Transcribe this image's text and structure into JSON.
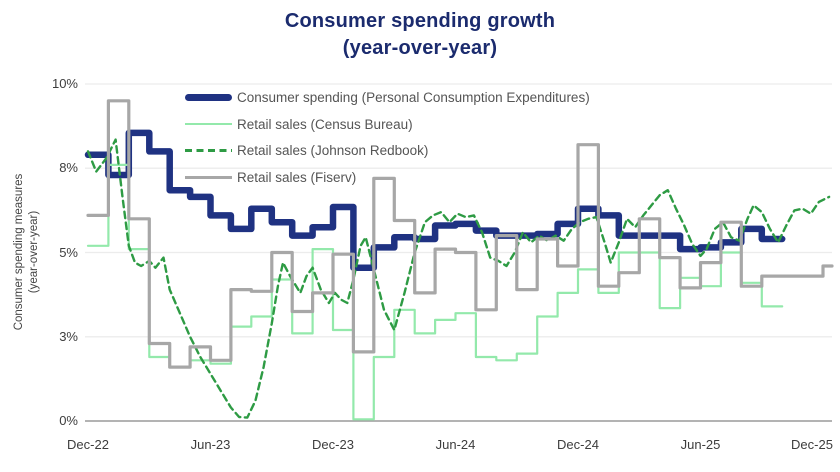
{
  "title": {
    "line1": "Consumer spending growth",
    "line2": "(year-over-year)"
  },
  "y_axis": {
    "title_line1": "Consumer spending measures",
    "title_line2": "(year-over-year)",
    "ticks": [
      {
        "label": "10%",
        "value": 10
      },
      {
        "label": "8%",
        "value": 7.5
      },
      {
        "label": "5%",
        "value": 5
      },
      {
        "label": "3%",
        "value": 2.5
      },
      {
        "label": "0%",
        "value": 0
      }
    ]
  },
  "x_axis": {
    "ticks": [
      {
        "label": "Dec-22",
        "month": 0
      },
      {
        "label": "Jun-23",
        "month": 6
      },
      {
        "label": "Dec-23",
        "month": 12
      },
      {
        "label": "Jun-24",
        "month": 18
      },
      {
        "label": "Dec-24",
        "month": 24
      },
      {
        "label": "Jun-25",
        "month": 30
      },
      {
        "label": "Dec-25",
        "month": 36
      }
    ]
  },
  "legend": [
    {
      "label": "Consumer spending (Personal Consumption Expenditures)",
      "swatch": "thick",
      "color": "#1f3282"
    },
    {
      "label": "Retail sales (Census Bureau)",
      "swatch": "thin",
      "color": "#93e9ab"
    },
    {
      "label": "Retail sales (Johnson Redbook)",
      "swatch": "dashed",
      "color": "#2e9b44"
    },
    {
      "label": "Retail sales (Fiserv)",
      "swatch": "medium",
      "color": "#a7a7a7"
    }
  ],
  "colors": {
    "title": "#1b2b6e",
    "pce": "#1f3282",
    "census": "#93e9ab",
    "redbook": "#2e9b44",
    "fiserv": "#a7a7a7",
    "grid": "#ececec",
    "axis_line": "#9a9a9a",
    "tick_text": "#3d3d3d",
    "legend_text": "#555555",
    "background": "#ffffff"
  },
  "chart_data": {
    "type": "line",
    "title": "Consumer spending growth (year-over-year)",
    "ylabel": "Consumer spending measures (year-over-year)",
    "ylim": [
      0,
      10
    ],
    "x_unit": "months since Dec-2022",
    "xlim_months": [
      0,
      36.5
    ],
    "grid": "horizontal-only",
    "legend_position": "top-left-inside",
    "series": [
      {
        "name": "Consumer spending (Personal Consumption Expenditures)",
        "key": "pce",
        "render": "step",
        "color": "#1f3282",
        "width": 6.5,
        "dash": null,
        "start_month": 0,
        "values": [
          7.9,
          7.3,
          8.55,
          8.0,
          6.85,
          6.65,
          6.1,
          5.7,
          6.3,
          5.9,
          5.5,
          5.75,
          6.35,
          4.55,
          5.15,
          5.45,
          5.4,
          5.8,
          5.85,
          5.65,
          5.5,
          5.5,
          5.55,
          5.85,
          6.3,
          6.1,
          5.5,
          5.5,
          5.5,
          5.1,
          5.15,
          5.3,
          5.7,
          5.4
        ]
      },
      {
        "name": "Retail sales (Census Bureau)",
        "key": "census",
        "render": "step",
        "color": "#93e9ab",
        "width": 2.2,
        "dash": null,
        "start_month": 0,
        "values": [
          5.2,
          7.6,
          5.1,
          1.9,
          1.6,
          1.8,
          1.7,
          2.8,
          3.1,
          4.2,
          2.6,
          5.1,
          2.7,
          0.05,
          1.9,
          3.3,
          2.6,
          3.0,
          3.2,
          1.9,
          1.8,
          2.0,
          3.1,
          3.8,
          4.5,
          3.8,
          5.0,
          5.0,
          3.35,
          4.25,
          4.0,
          5.0,
          4.1,
          3.4
        ]
      },
      {
        "name": "Retail sales (Johnson Redbook)",
        "key": "redbook",
        "render": "line",
        "color": "#2e9b44",
        "width": 2.4,
        "dash": "6.5 4.5",
        "points": [
          [
            0,
            8.0
          ],
          [
            0.4,
            7.4
          ],
          [
            0.9,
            7.8
          ],
          [
            1.35,
            8.35
          ],
          [
            1.7,
            6.6
          ],
          [
            2.0,
            5.2
          ],
          [
            2.3,
            4.7
          ],
          [
            2.6,
            4.6
          ],
          [
            3.0,
            4.75
          ],
          [
            3.3,
            4.55
          ],
          [
            3.7,
            4.85
          ],
          [
            4.0,
            3.9
          ],
          [
            4.5,
            3.2
          ],
          [
            5.0,
            2.5
          ],
          [
            5.5,
            1.9
          ],
          [
            6.0,
            1.4
          ],
          [
            6.5,
            0.9
          ],
          [
            7.0,
            0.4
          ],
          [
            7.4,
            0.12
          ],
          [
            7.8,
            0.1
          ],
          [
            8.2,
            0.6
          ],
          [
            8.6,
            1.6
          ],
          [
            9.0,
            2.9
          ],
          [
            9.3,
            4.0
          ],
          [
            9.55,
            4.7
          ],
          [
            9.9,
            4.3
          ],
          [
            10.4,
            3.8
          ],
          [
            10.7,
            4.3
          ],
          [
            11.0,
            4.55
          ],
          [
            11.4,
            3.9
          ],
          [
            11.8,
            3.5
          ],
          [
            12.1,
            3.8
          ],
          [
            12.4,
            3.6
          ],
          [
            12.7,
            3.5
          ],
          [
            13.0,
            4.2
          ],
          [
            13.35,
            5.2
          ],
          [
            13.6,
            5.45
          ],
          [
            14.0,
            4.5
          ],
          [
            14.5,
            3.3
          ],
          [
            15.0,
            2.7
          ],
          [
            15.5,
            3.8
          ],
          [
            16.0,
            5.0
          ],
          [
            16.5,
            5.9
          ],
          [
            16.9,
            6.1
          ],
          [
            17.3,
            6.2
          ],
          [
            17.7,
            5.9
          ],
          [
            18.1,
            6.15
          ],
          [
            18.5,
            6.05
          ],
          [
            18.9,
            6.1
          ],
          [
            19.3,
            5.6
          ],
          [
            19.7,
            4.85
          ],
          [
            20.1,
            4.75
          ],
          [
            20.5,
            4.6
          ],
          [
            20.9,
            5.0
          ],
          [
            21.3,
            5.6
          ],
          [
            21.7,
            5.3
          ],
          [
            22.1,
            5.5
          ],
          [
            22.5,
            5.35
          ],
          [
            22.9,
            5.5
          ],
          [
            23.3,
            5.35
          ],
          [
            23.7,
            5.7
          ],
          [
            24.1,
            5.9
          ],
          [
            24.5,
            6.0
          ],
          [
            24.9,
            6.05
          ],
          [
            25.3,
            5.3
          ],
          [
            25.6,
            4.7
          ],
          [
            26.0,
            5.3
          ],
          [
            26.4,
            6.0
          ],
          [
            26.8,
            5.75
          ],
          [
            27.2,
            6.1
          ],
          [
            27.6,
            6.4
          ],
          [
            28.0,
            6.7
          ],
          [
            28.4,
            6.85
          ],
          [
            28.8,
            6.3
          ],
          [
            29.2,
            5.8
          ],
          [
            29.6,
            5.25
          ],
          [
            30.0,
            4.9
          ],
          [
            30.3,
            5.1
          ],
          [
            30.7,
            5.7
          ],
          [
            31.1,
            5.9
          ],
          [
            31.5,
            5.45
          ],
          [
            31.9,
            5.35
          ],
          [
            32.3,
            6.0
          ],
          [
            32.6,
            6.4
          ],
          [
            33.0,
            6.2
          ],
          [
            33.4,
            5.7
          ],
          [
            33.8,
            5.3
          ],
          [
            34.2,
            5.8
          ],
          [
            34.6,
            6.25
          ],
          [
            35.0,
            6.3
          ],
          [
            35.4,
            6.15
          ],
          [
            35.8,
            6.5
          ],
          [
            36.3,
            6.65
          ]
        ]
      },
      {
        "name": "Retail sales (Fiserv)",
        "key": "fiserv",
        "render": "step",
        "color": "#a7a7a7",
        "width": 3.2,
        "dash": null,
        "start_month": 0,
        "end_extension": 0.45,
        "values": [
          6.1,
          9.5,
          6.0,
          2.3,
          1.6,
          2.2,
          1.8,
          3.9,
          3.85,
          5.0,
          3.25,
          3.8,
          4.95,
          2.05,
          7.2,
          5.95,
          3.8,
          5.1,
          5.0,
          3.3,
          5.5,
          3.9,
          5.4,
          4.6,
          8.2,
          4.0,
          4.4,
          6.0,
          4.85,
          3.95,
          4.7,
          5.9,
          4.0,
          4.3,
          4.3,
          4.3,
          4.6
        ]
      }
    ]
  }
}
